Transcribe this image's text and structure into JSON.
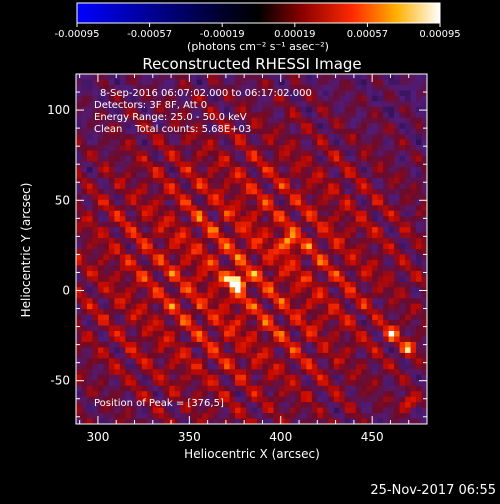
{
  "colorbar": {
    "ticks": [
      "-0.00095",
      "-0.00057",
      "-0.00019",
      "0.00019",
      "0.00057",
      "0.00095"
    ],
    "tick_values": [
      -0.00095,
      -0.00057,
      -0.00019,
      0.00019,
      0.00057,
      0.00095
    ],
    "unit_label": "(photons cm⁻² s⁻¹ asec⁻²)"
  },
  "title": "Reconstructed RHESSI Image",
  "info": {
    "line1": "8-Sep-2016 06:07:02.000 to 06:17:02.000",
    "line2": "Detectors: 3F 8F, Att 0",
    "line3": "Energy Range: 25.0 - 50.0 keV",
    "line4": "Clean    Total counts: 5.68E+03"
  },
  "peak_label": "Position of Peak = [376,5]",
  "axes": {
    "xlabel": "Heliocentric X (arcsec)",
    "ylabel": "Heliocentric Y (arcsec)",
    "x_ticks": [
      "300",
      "350",
      "400",
      "450"
    ],
    "x_tick_values": [
      300,
      350,
      400,
      450
    ],
    "y_ticks": [
      "100",
      "50",
      "0",
      "-50"
    ],
    "y_tick_values": [
      100,
      50,
      0,
      -50
    ],
    "xlim": [
      288,
      480
    ],
    "ylim": [
      -74,
      120
    ]
  },
  "timestamp": "25-Nov-2017 06:55",
  "colors": {
    "background": "#000000",
    "text": "#ffffff",
    "map_base": "#4a1a6e"
  },
  "image_data": {
    "type": "heatmap",
    "colormap": "blue-black-red-yellow-white",
    "peak": {
      "x": 376,
      "y": 5
    },
    "secondary_sources": [
      {
        "x": 404,
        "y": 26
      },
      {
        "x": 461,
        "y": -24
      },
      {
        "x": 470,
        "y": -32
      },
      {
        "x": 470,
        "y": -62
      }
    ]
  }
}
